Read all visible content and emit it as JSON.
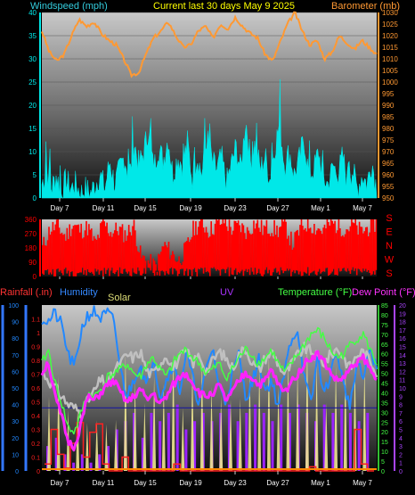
{
  "header": {
    "wind_label": "Windspeed (mph)",
    "title": "Current last 30 days May 9 2025",
    "baro_label": "Barometer (mb)"
  },
  "bottom_labels": {
    "rain": "Rainfall (.in)",
    "humidity": "Humidity",
    "solar": "Solar",
    "uv": "UV",
    "temp": "Temperature (°F)",
    "dew": "Dew Point (°F)"
  },
  "colors": {
    "wind": "#00e8e8",
    "baro": "#ff9933",
    "direction": "#ff0000",
    "rain": "#ff2020",
    "humidity": "#2288ff",
    "solar": "#f0e890",
    "uv": "#9a22ff",
    "temp": "#44ff44",
    "dew": "#ff22ff",
    "axis_blue": "#3377ff",
    "axis_purple": "#aa44ff"
  },
  "chart_data": [
    {
      "type": "line",
      "title": "Current last 30 days May 9 2025",
      "x_ticks": [
        "Day 7",
        "Day 11",
        "Day 15",
        "Day 19",
        "Day 23",
        "Day 27",
        "May 1",
        "May 7"
      ],
      "left_axis": {
        "label": "Windspeed (mph)",
        "ylim": [
          0,
          40
        ],
        "ticks": [
          0,
          5,
          10,
          15,
          20,
          25,
          30,
          35,
          40
        ]
      },
      "right_axis": {
        "label": "Barometer (mb)",
        "ylim": [
          950,
          1030
        ],
        "ticks": [
          950,
          955,
          960,
          965,
          970,
          975,
          980,
          985,
          990,
          995,
          1000,
          1005,
          1010,
          1015,
          1020,
          1025,
          1030
        ]
      },
      "series": [
        {
          "name": "Barometer (mb)",
          "axis": "right",
          "values": [
            1022,
            1013,
            1009,
            1012,
            1020,
            1027,
            1024,
            1026,
            1021,
            1018,
            1016,
            1010,
            1003,
            1004,
            1012,
            1019,
            1022,
            1026,
            1020,
            1015,
            1016,
            1022,
            1024,
            1019,
            1025,
            1023,
            1028,
            1024,
            1021,
            1019,
            1012,
            1009,
            1017,
            1025,
            1030,
            1022,
            1016,
            1018,
            1010,
            1013,
            1020,
            1017,
            1014,
            1018,
            1015,
            1012
          ]
        },
        {
          "name": "Windspeed (mph)",
          "axis": "left",
          "values": [
            3,
            6,
            2,
            5,
            1,
            4,
            2,
            3,
            1,
            2,
            1,
            3,
            5,
            2,
            8,
            3,
            6,
            9,
            4,
            12,
            7,
            10,
            15,
            6,
            11,
            8,
            13,
            5,
            9,
            7,
            12,
            4,
            9,
            5,
            13,
            8,
            6,
            9,
            3,
            7,
            11,
            6,
            17,
            8,
            12,
            6,
            9,
            4,
            11,
            16,
            7,
            10,
            5,
            8,
            13,
            5,
            6,
            10,
            4,
            3,
            7,
            5,
            9,
            3,
            6,
            2,
            5,
            3,
            8,
            2
          ]
        }
      ]
    },
    {
      "type": "line",
      "x_ticks": [
        "Day 7",
        "Day 11",
        "Day 15",
        "Day 19",
        "Day 23",
        "Day 27",
        "May 1",
        "May 7"
      ],
      "y_ticks": [
        0,
        90,
        180,
        270,
        360
      ],
      "right_labels": [
        "S",
        "E",
        "N",
        "W",
        "S"
      ],
      "series": [
        {
          "name": "Wind Direction",
          "values": [
            180,
            300,
            320,
            250,
            330,
            290,
            310,
            200,
            340,
            280,
            300,
            260,
            330,
            120,
            90,
            60,
            200,
            150,
            100,
            180,
            310,
            340,
            290,
            330,
            350,
            300,
            320,
            280,
            340,
            300,
            310,
            290,
            330,
            200,
            300,
            340,
            310,
            290,
            340,
            320,
            300,
            330,
            280,
            310,
            340
          ]
        }
      ]
    },
    {
      "type": "line",
      "x_ticks": [
        "Day 7",
        "Day 11",
        "Day 15",
        "Day 19",
        "Day 23",
        "Day 27",
        "May 1",
        "May 7"
      ],
      "axes": {
        "rain": {
          "label": "Rainfall (.in)",
          "ylim": [
            0,
            1.2
          ],
          "ticks": [
            0,
            0.1,
            0.2,
            0.3,
            0.4,
            0.5,
            0.6,
            0.7,
            0.8,
            0.9,
            1,
            1.1
          ]
        },
        "humidity": {
          "label": "Humidity",
          "ylim": [
            0,
            100
          ],
          "ticks": [
            0,
            10,
            20,
            30,
            40,
            50,
            60,
            70,
            80,
            90,
            100
          ]
        },
        "temperature": {
          "label": "Temperature (°F)",
          "ylim": [
            0,
            85
          ],
          "ticks": [
            0,
            5,
            10,
            15,
            20,
            25,
            30,
            35,
            40,
            45,
            50,
            55,
            60,
            65,
            70,
            75,
            80,
            85
          ]
        },
        "uv": {
          "label": "UV",
          "ylim": [
            0,
            20
          ],
          "ticks": [
            0,
            1,
            2,
            3,
            4,
            5,
            6,
            7,
            8,
            9,
            10,
            11,
            12,
            13,
            14,
            15,
            16,
            17,
            18,
            19,
            20
          ]
        }
      },
      "series": [
        {
          "name": "Humidity",
          "axis": "humidity",
          "values": [
            92,
            90,
            95,
            88,
            70,
            62,
            85,
            94,
            96,
            92,
            95,
            90,
            60,
            45,
            55,
            65,
            50,
            70,
            45,
            55,
            65,
            48,
            72,
            55,
            40,
            60,
            75,
            50,
            42,
            58,
            70,
            45,
            52,
            68,
            48,
            55,
            38,
            60,
            80,
            85,
            55,
            40,
            70,
            45,
            60,
            72,
            50,
            40,
            65,
            55,
            75,
            60
          ]
        },
        {
          "name": "Temperature (°F)",
          "axis": "temperature",
          "values": [
            55,
            62,
            45,
            35,
            22,
            20,
            30,
            40,
            38,
            42,
            48,
            50,
            52,
            55,
            50,
            48,
            55,
            58,
            52,
            48,
            55,
            60,
            62,
            58,
            55,
            50,
            52,
            55,
            48,
            52,
            58,
            62,
            60,
            55,
            58,
            62,
            55,
            50,
            55,
            60,
            65,
            70,
            72,
            68,
            62,
            58,
            60,
            65,
            68,
            70,
            62,
            55
          ]
        },
        {
          "name": "Dew Point (°F)",
          "axis": "temperature",
          "values": [
            50,
            56,
            38,
            28,
            15,
            12,
            25,
            38,
            36,
            40,
            44,
            46,
            40,
            35,
            38,
            42,
            36,
            40,
            34,
            38,
            44,
            48,
            50,
            45,
            40,
            38,
            40,
            44,
            36,
            40,
            46,
            50,
            48,
            44,
            46,
            52,
            44,
            40,
            46,
            50,
            55,
            58,
            60,
            56,
            50,
            46,
            48,
            52,
            56,
            58,
            52,
            46
          ]
        },
        {
          "name": "Solar",
          "axis": "humidity",
          "values": [
            60,
            55,
            50,
            45,
            40,
            38,
            35,
            42,
            48,
            55,
            52,
            60,
            65,
            70,
            68,
            72,
            60,
            58,
            65,
            70,
            62,
            68,
            72,
            65,
            70,
            60,
            66,
            72,
            68,
            62,
            70,
            74,
            66,
            60,
            68,
            72,
            65,
            58,
            64,
            70,
            74,
            72,
            68,
            65,
            70,
            74,
            68,
            62,
            70,
            72,
            66,
            60
          ]
        },
        {
          "name": "Rainfall (.in)",
          "axis": "rain",
          "values": [
            0.05,
            0.3,
            0.12,
            0.02,
            0.2,
            0.35,
            0.1,
            0.28,
            0.34,
            0.05,
            0.0,
            0.0,
            0.1,
            0.0,
            0.0,
            0.0,
            0.0,
            0.0,
            0.0,
            0.0,
            0.05,
            0.0,
            0.0,
            0.0,
            0.0,
            0.0,
            0.0,
            0.0,
            0.0,
            0.0,
            0.0,
            0.0,
            0.0,
            0.0,
            0.0,
            0.0,
            0.0,
            0.0,
            0.0,
            0.0,
            0.0,
            0.03,
            0.0,
            0.0,
            0.0,
            0.0,
            0.0,
            0.0,
            0.3,
            0.05,
            0.0,
            0.0
          ]
        },
        {
          "name": "UV",
          "axis": "uv",
          "type": "bars",
          "values": [
            3,
            4,
            2,
            1,
            2,
            1,
            2,
            3,
            5,
            6,
            7,
            4,
            7,
            6,
            7,
            8,
            5,
            6,
            7,
            6,
            7,
            8,
            6,
            7,
            8,
            7,
            6,
            8,
            7,
            8,
            7,
            6,
            8,
            7,
            8,
            7,
            6,
            7
          ]
        }
      ]
    }
  ]
}
